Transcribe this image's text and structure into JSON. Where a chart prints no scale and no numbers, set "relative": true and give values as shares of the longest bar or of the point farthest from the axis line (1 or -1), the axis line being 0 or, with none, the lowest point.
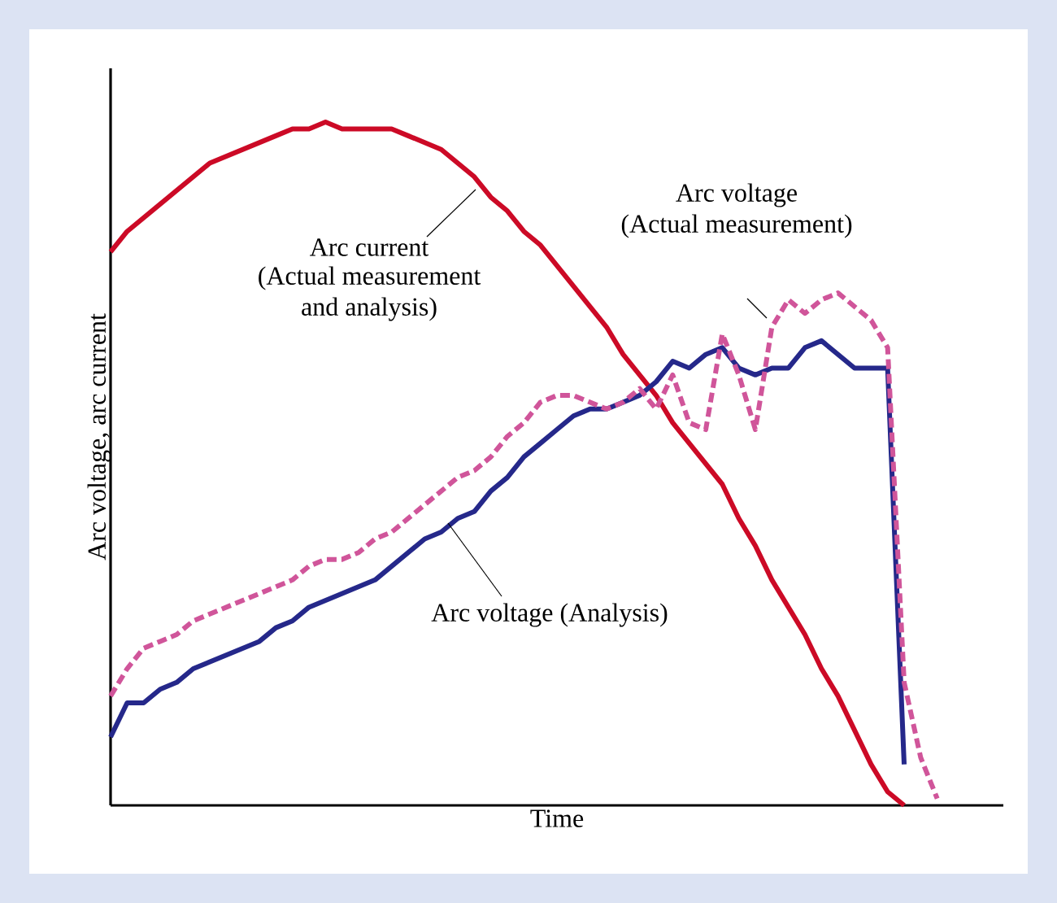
{
  "chart_data": {
    "type": "line",
    "relative": true,
    "xlabel": "Time",
    "ylabel": "Arc voltage, arc current",
    "annotations": [
      "Arc current",
      "(Actual measurement",
      "and analysis)",
      "Arc voltage (Analysis)",
      "Arc voltage",
      "(Actual measurement)"
    ],
    "categories": [
      null,
      null,
      null,
      null,
      null,
      null,
      null,
      null,
      null,
      null,
      null,
      null,
      null,
      null,
      null,
      null,
      null,
      null,
      null,
      null,
      null,
      null,
      null,
      null,
      null,
      null,
      null,
      null,
      null,
      null,
      null,
      null,
      null,
      null,
      null,
      null,
      null,
      null,
      null,
      null,
      null,
      null,
      null,
      null,
      null,
      null,
      null,
      null,
      null,
      null,
      null
    ],
    "series": [
      {
        "color": "#cc0a26",
        "line_style": "solid",
        "values": [
          0.81,
          0.84,
          0.86,
          0.88,
          0.9,
          0.92,
          0.94,
          0.95,
          0.96,
          0.97,
          0.98,
          0.99,
          0.99,
          1,
          0.99,
          0.99,
          0.99,
          0.99,
          0.98,
          0.97,
          0.96,
          0.94,
          0.92,
          0.89,
          0.87,
          0.84,
          0.82,
          0.79,
          0.76,
          0.73,
          0.7,
          0.66,
          0.63,
          0.6,
          0.56,
          0.53,
          0.5,
          0.47,
          0.42,
          0.38,
          0.33,
          0.29,
          0.25,
          0.2,
          0.16,
          0.11,
          0.06,
          0.02,
          0,
          null,
          null
        ]
      },
      {
        "color": "#25288a",
        "line_style": "solid",
        "values": [
          0.1,
          0.15,
          0.15,
          0.17,
          0.18,
          0.2,
          0.21,
          0.22,
          0.23,
          0.24,
          0.26,
          0.27,
          0.29,
          0.3,
          0.31,
          0.32,
          0.33,
          0.35,
          0.37,
          0.39,
          0.4,
          0.42,
          0.43,
          0.46,
          0.48,
          0.51,
          0.53,
          0.55,
          0.57,
          0.58,
          0.58,
          0.59,
          0.6,
          0.62,
          0.65,
          0.64,
          0.66,
          0.67,
          0.64,
          0.63,
          0.64,
          0.64,
          0.67,
          0.68,
          0.66,
          0.64,
          0.64,
          0.64,
          0.06,
          null,
          null
        ]
      },
      {
        "color": "#d0559a",
        "line_style": "dashed",
        "values": [
          0.16,
          0.2,
          0.23,
          0.24,
          0.25,
          0.27,
          0.28,
          0.29,
          0.3,
          0.31,
          0.32,
          0.33,
          0.35,
          0.36,
          0.36,
          0.37,
          0.39,
          0.4,
          0.42,
          0.44,
          0.46,
          0.48,
          0.49,
          0.51,
          0.54,
          0.56,
          0.59,
          0.6,
          0.6,
          0.59,
          0.58,
          0.59,
          0.61,
          0.58,
          0.63,
          0.56,
          0.55,
          0.69,
          0.63,
          0.55,
          0.7,
          0.74,
          0.72,
          0.74,
          0.75,
          0.73,
          0.71,
          0.67,
          0.18,
          0.07,
          0.01
        ]
      }
    ]
  }
}
